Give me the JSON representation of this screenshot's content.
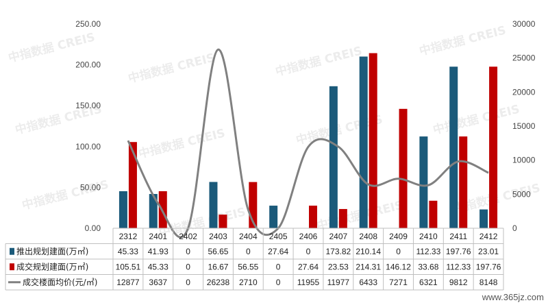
{
  "chart_data": {
    "type": "bar",
    "categories": [
      "2312",
      "2401",
      "2402",
      "2403",
      "2404",
      "2405",
      "2406",
      "2407",
      "2408",
      "2409",
      "2410",
      "2411",
      "2412"
    ],
    "series": [
      {
        "name": "推出规划建面(万㎡)",
        "type": "bar",
        "axis": "left",
        "color": "#1b5a7a",
        "values": [
          45.33,
          41.93,
          0,
          56.65,
          0,
          27.64,
          0,
          173.82,
          210.14,
          0,
          112.33,
          197.76,
          23.01
        ],
        "labels": [
          "45.33",
          "41.93",
          "0",
          "56.65",
          "0",
          "27.64",
          "0",
          "173.82",
          "210.14",
          "0",
          "112.33",
          "197.76",
          "23.01"
        ]
      },
      {
        "name": "成交规划建面(万㎡)",
        "type": "bar",
        "axis": "left",
        "color": "#c00000",
        "values": [
          105.51,
          45.33,
          0,
          16.67,
          56.55,
          0,
          27.64,
          23.53,
          214.31,
          146.12,
          33.68,
          112.33,
          197.76
        ],
        "labels": [
          "105.51",
          "45.33",
          "0",
          "16.67",
          "56.55",
          "0",
          "27.64",
          "23.53",
          "214.31",
          "146.12",
          "33.68",
          "112.33",
          "197.76"
        ]
      },
      {
        "name": "成交楼面均价(元/㎡)",
        "type": "line",
        "axis": "right",
        "color": "#808080",
        "values": [
          12877,
          3637,
          0,
          26238,
          2710,
          0,
          11955,
          11977,
          6433,
          7271,
          6321,
          9812,
          8148
        ],
        "labels": [
          "12877",
          "3637",
          "0",
          "26238",
          "2710",
          "0",
          "11955",
          "11977",
          "6433",
          "7271",
          "6321",
          "9812",
          "8148"
        ]
      }
    ],
    "ylim_left": [
      0,
      250
    ],
    "yticks_left": [
      "0.00",
      "50.00",
      "100.00",
      "150.00",
      "200.00",
      "250.00"
    ],
    "ylim_right": [
      0,
      30000
    ],
    "yticks_right": [
      "0",
      "5000",
      "10000",
      "15000",
      "20000",
      "25000",
      "30000"
    ],
    "grid": false,
    "legend": "data-table-bottom"
  },
  "watermark": "中指数据 CREIS",
  "site_label": "www.365jz.com"
}
